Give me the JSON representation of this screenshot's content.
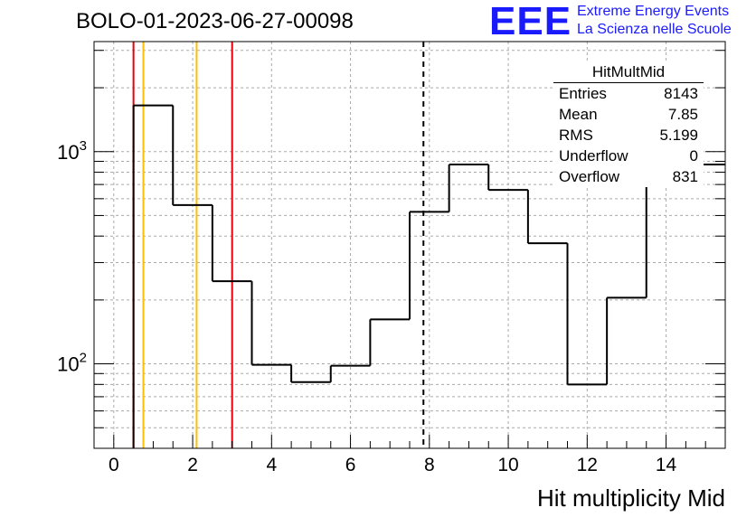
{
  "header": {
    "title": "BOLO-01-2023-06-27-00098",
    "logo_text": "EEE",
    "logo_line1": "Extreme Energy Events",
    "logo_line2": "La Scienza nelle Scuole",
    "logo_color": "#1a1aff"
  },
  "stats": {
    "name": "HitMultMid",
    "rows": [
      {
        "label": "Entries",
        "value": "8143"
      },
      {
        "label": "Mean",
        "value": "7.85"
      },
      {
        "label": "RMS",
        "value": "5.199"
      },
      {
        "label": "Underflow",
        "value": "0"
      },
      {
        "label": "Overflow",
        "value": "831"
      }
    ]
  },
  "chart_data": {
    "type": "histogram",
    "title": "BOLO-01-2023-06-27-00098",
    "xlabel": "Hit multiplicity Mid",
    "ylabel": "",
    "xlim": [
      -0.5,
      15.5
    ],
    "ylim": [
      40,
      3300
    ],
    "yscale": "log",
    "grid": true,
    "x_ticks": [
      0,
      2,
      4,
      6,
      8,
      10,
      12,
      14
    ],
    "y_ticks": [
      {
        "value": 100,
        "base": "10",
        "exp": "2"
      },
      {
        "value": 1000,
        "base": "10",
        "exp": "3"
      }
    ],
    "bins": {
      "edges": [
        0.5,
        1.5,
        2.5,
        3.5,
        4.5,
        5.5,
        6.5,
        7.5,
        8.5,
        9.5,
        10.5,
        11.5,
        12.5,
        13.5,
        15.5
      ],
      "values": [
        1650,
        560,
        245,
        99,
        82,
        98,
        162,
        520,
        870,
        660,
        370,
        80,
        205,
        870
      ]
    },
    "vertical_lines": [
      {
        "x": 0.5,
        "color": "#e8000b",
        "style": "solid"
      },
      {
        "x": 0.75,
        "color": "#ffbf00",
        "style": "solid"
      },
      {
        "x": 2.1,
        "color": "#ffbf00",
        "style": "solid"
      },
      {
        "x": 3.0,
        "color": "#e8000b",
        "style": "solid"
      },
      {
        "x": 7.85,
        "color": "#000000",
        "style": "dashed"
      }
    ]
  }
}
